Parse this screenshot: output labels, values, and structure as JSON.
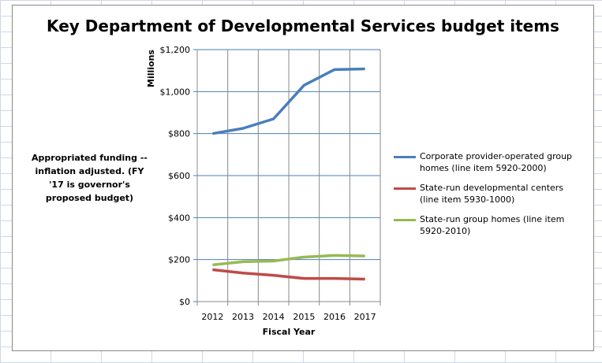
{
  "chart_data": {
    "type": "line",
    "title": "Key Department of Developmental Services budget items",
    "xlabel": "Fiscal Year",
    "ylabel": "Millions",
    "annotation": "Appropriated funding -- inflation adjusted. (FY '17 is governor's proposed budget)",
    "categories": [
      "2012",
      "2013",
      "2014",
      "2015",
      "2016",
      "2017"
    ],
    "ylim": [
      0,
      1200
    ],
    "yticks": [
      0,
      200,
      400,
      600,
      800,
      1000,
      1200
    ],
    "ytick_labels": [
      "$0",
      "$200",
      "$400",
      "$600",
      "$800",
      "$1,000",
      "$1,200"
    ],
    "grid": true,
    "legend_position": "right",
    "series": [
      {
        "name": "Corporate provider-operated group homes (line item 5920-2000)",
        "color": "#4a7ebb",
        "values": [
          800,
          825,
          870,
          1030,
          1105,
          1108
        ]
      },
      {
        "name": "State-run developmental centers (line item 5930-1000)",
        "color": "#be4b48",
        "values": [
          152,
          136,
          125,
          110,
          110,
          107
        ]
      },
      {
        "name": "State-run group homes (line item 5920-2010)",
        "color": "#98b954",
        "values": [
          175,
          190,
          193,
          212,
          220,
          217
        ]
      }
    ]
  }
}
